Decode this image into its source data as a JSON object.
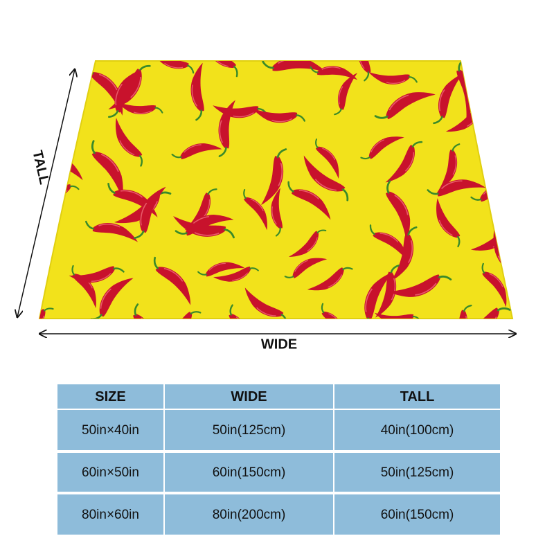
{
  "dimension_labels": {
    "tall": "TALL",
    "wide": "WIDE"
  },
  "table": {
    "header": [
      "SIZE",
      "WIDE",
      "TALL"
    ],
    "rows": [
      [
        "50in×40in",
        "50in(125cm)",
        "40in(100cm)"
      ],
      [
        "60in×50in",
        "60in(150cm)",
        "50in(125cm)"
      ],
      [
        "80in×60in",
        "80in(200cm)",
        "60in(150cm)"
      ]
    ]
  }
}
